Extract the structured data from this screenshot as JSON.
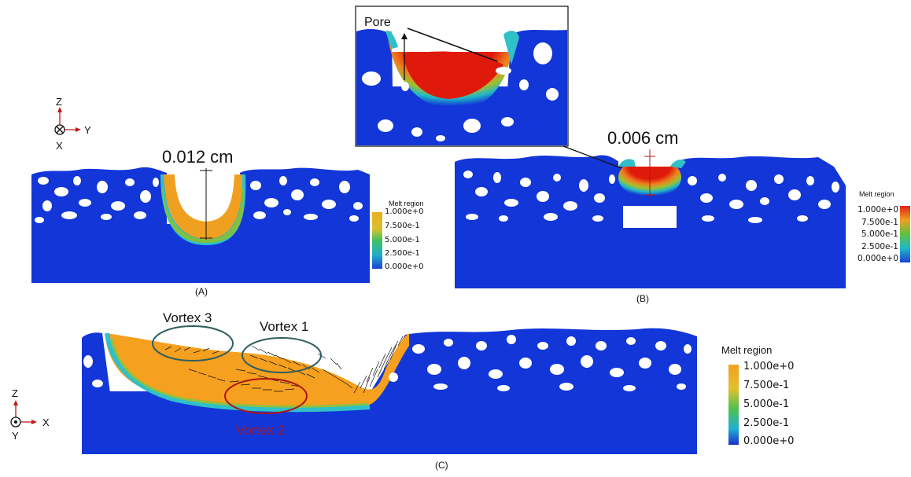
{
  "panels": {
    "a": {
      "caption": "(A)",
      "depth_label": "0.012 cm",
      "axes": {
        "up": "Z",
        "right": "Y",
        "into": "X"
      },
      "colorbar": {
        "title": "Melt region",
        "ticks": [
          "1.000e+0",
          "7.500e-1",
          "5.000e-1",
          "2.500e-1",
          "0.000e+0"
        ]
      }
    },
    "b": {
      "caption": "(B)",
      "depth_label": "0.006 cm",
      "inset_label": "Pore",
      "colorbar": {
        "title": "Melt region",
        "ticks": [
          "1.000e+0",
          "7.500e-1",
          "5.000e-1",
          "2.500e-1",
          "0.000e+0"
        ]
      }
    },
    "c": {
      "caption": "(C)",
      "axes": {
        "up": "Z",
        "right": "X",
        "out": "Y"
      },
      "vortices": [
        "Vortex 3",
        "Vortex 1",
        "Vortex 2"
      ],
      "colorbar": {
        "title": "Melt region",
        "ticks": [
          "1.000e+0",
          "7.500e-1",
          "5.000e-1",
          "2.500e-1",
          "0.000e+0"
        ]
      }
    }
  },
  "colors": {
    "substrate": "#1236d8",
    "pore": "#ffffff",
    "melt_hot": "#e01a0a",
    "melt_orange": "#f5a01e",
    "vortex_teal": "#2e5e5e",
    "vortex_red": "#b01515"
  }
}
